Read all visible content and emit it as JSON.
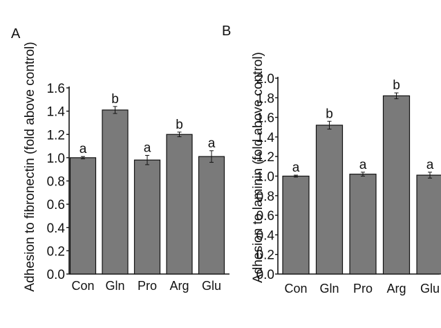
{
  "colors": {
    "bar_fill": "#7a7a7a",
    "bar_stroke": "#111111",
    "axis": "#111111",
    "background": "#ffffff"
  },
  "chart_data": [
    {
      "panel_label": "A",
      "type": "bar",
      "ylabel": "Adhesion to fibronectin (fold above control)",
      "xlabel": "",
      "ylim": [
        0,
        1.6
      ],
      "yticks": [
        "0.0",
        "0.2",
        "0.4",
        "0.6",
        "0.8",
        "1.0",
        "1.2",
        "1.4",
        "1.6"
      ],
      "categories": [
        "Con",
        "Gln",
        "Pro",
        "Arg",
        "Glu"
      ],
      "values": [
        1.0,
        1.41,
        0.98,
        1.2,
        1.01
      ],
      "errors": [
        0.01,
        0.03,
        0.04,
        0.02,
        0.05
      ],
      "annotations": [
        "a",
        "b",
        "a",
        "b",
        "a"
      ],
      "grid": false,
      "legend": "none"
    },
    {
      "panel_label": "B",
      "type": "bar",
      "ylabel": "Adhesion to laminin (fold above control)",
      "xlabel": "",
      "ylim": [
        0,
        2.0
      ],
      "yticks": [
        "0.0",
        "0.2",
        "0.4",
        "0.6",
        "0.8",
        "1.0",
        "1.2",
        "1.4",
        "1.6",
        "1.8",
        "2.0"
      ],
      "categories": [
        "Con",
        "Gln",
        "Pro",
        "Arg",
        "Glu"
      ],
      "values": [
        1.0,
        1.52,
        1.02,
        1.82,
        1.01
      ],
      "errors": [
        0.01,
        0.04,
        0.02,
        0.03,
        0.03
      ],
      "annotations": [
        "a",
        "b",
        "a",
        "b",
        "a"
      ],
      "grid": false,
      "legend": "none"
    }
  ]
}
